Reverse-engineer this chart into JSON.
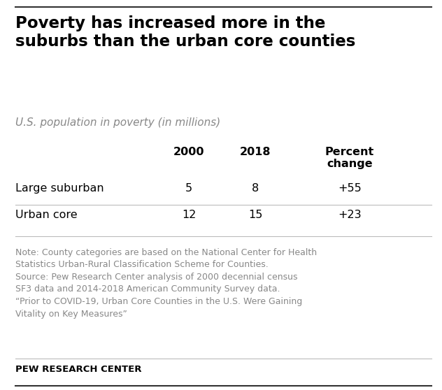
{
  "title": "Poverty has increased more in the\nsuburbs than the urban core counties",
  "subtitle": "U.S. population in poverty (in millions)",
  "col_headers": [
    "2000",
    "2018",
    "Percent\nchange"
  ],
  "row_labels": [
    "Large suburban",
    "Urban core"
  ],
  "values": [
    [
      "5",
      "8",
      "+55"
    ],
    [
      "12",
      "15",
      "+23"
    ]
  ],
  "note_text": "Note: County categories are based on the National Center for Health\nStatistics Urban-Rural Classification Scheme for Counties.\nSource: Pew Research Center analysis of 2000 decennial census\nSF3 data and 2014-2018 American Community Survey data.\n“Prior to COVID-19, Urban Core Counties in the U.S. Were Gaining\nVitality on Key Measures”",
  "footer": "PEW RESEARCH CENTER",
  "bg_color": "#ffffff",
  "title_color": "#000000",
  "subtitle_color": "#888888",
  "text_color": "#000000",
  "note_color": "#888888",
  "footer_color": "#000000",
  "line_color": "#bbbbbb",
  "top_line_color": "#333333",
  "bottom_line_color": "#333333",
  "fig_width": 6.32,
  "fig_height": 5.58,
  "dpi": 100
}
